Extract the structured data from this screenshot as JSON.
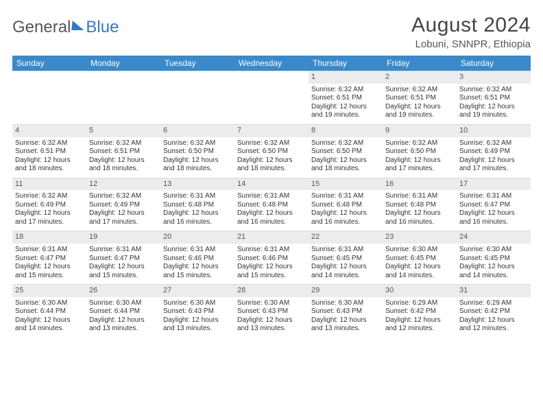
{
  "logo": {
    "text1": "General",
    "text2": "Blue"
  },
  "title": "August 2024",
  "location": "Lobuni, SNNPR, Ethiopia",
  "colors": {
    "header_bg": "#3b89c9",
    "header_text": "#ffffff",
    "daynum_bg": "#ececec",
    "border": "#d9d9d9",
    "text": "#333333",
    "logo_blue": "#2f7ac0"
  },
  "day_headers": [
    "Sunday",
    "Monday",
    "Tuesday",
    "Wednesday",
    "Thursday",
    "Friday",
    "Saturday"
  ],
  "weeks": [
    [
      {
        "day": "",
        "sunrise": "",
        "sunset": "",
        "daylight1": "",
        "daylight2": "",
        "empty": true
      },
      {
        "day": "",
        "sunrise": "",
        "sunset": "",
        "daylight1": "",
        "daylight2": "",
        "empty": true
      },
      {
        "day": "",
        "sunrise": "",
        "sunset": "",
        "daylight1": "",
        "daylight2": "",
        "empty": true
      },
      {
        "day": "",
        "sunrise": "",
        "sunset": "",
        "daylight1": "",
        "daylight2": "",
        "empty": true
      },
      {
        "day": "1",
        "sunrise": "Sunrise: 6:32 AM",
        "sunset": "Sunset: 6:51 PM",
        "daylight1": "Daylight: 12 hours",
        "daylight2": "and 19 minutes."
      },
      {
        "day": "2",
        "sunrise": "Sunrise: 6:32 AM",
        "sunset": "Sunset: 6:51 PM",
        "daylight1": "Daylight: 12 hours",
        "daylight2": "and 19 minutes."
      },
      {
        "day": "3",
        "sunrise": "Sunrise: 6:32 AM",
        "sunset": "Sunset: 6:51 PM",
        "daylight1": "Daylight: 12 hours",
        "daylight2": "and 19 minutes."
      }
    ],
    [
      {
        "day": "4",
        "sunrise": "Sunrise: 6:32 AM",
        "sunset": "Sunset: 6:51 PM",
        "daylight1": "Daylight: 12 hours",
        "daylight2": "and 18 minutes."
      },
      {
        "day": "5",
        "sunrise": "Sunrise: 6:32 AM",
        "sunset": "Sunset: 6:51 PM",
        "daylight1": "Daylight: 12 hours",
        "daylight2": "and 18 minutes."
      },
      {
        "day": "6",
        "sunrise": "Sunrise: 6:32 AM",
        "sunset": "Sunset: 6:50 PM",
        "daylight1": "Daylight: 12 hours",
        "daylight2": "and 18 minutes."
      },
      {
        "day": "7",
        "sunrise": "Sunrise: 6:32 AM",
        "sunset": "Sunset: 6:50 PM",
        "daylight1": "Daylight: 12 hours",
        "daylight2": "and 18 minutes."
      },
      {
        "day": "8",
        "sunrise": "Sunrise: 6:32 AM",
        "sunset": "Sunset: 6:50 PM",
        "daylight1": "Daylight: 12 hours",
        "daylight2": "and 18 minutes."
      },
      {
        "day": "9",
        "sunrise": "Sunrise: 6:32 AM",
        "sunset": "Sunset: 6:50 PM",
        "daylight1": "Daylight: 12 hours",
        "daylight2": "and 17 minutes."
      },
      {
        "day": "10",
        "sunrise": "Sunrise: 6:32 AM",
        "sunset": "Sunset: 6:49 PM",
        "daylight1": "Daylight: 12 hours",
        "daylight2": "and 17 minutes."
      }
    ],
    [
      {
        "day": "11",
        "sunrise": "Sunrise: 6:32 AM",
        "sunset": "Sunset: 6:49 PM",
        "daylight1": "Daylight: 12 hours",
        "daylight2": "and 17 minutes."
      },
      {
        "day": "12",
        "sunrise": "Sunrise: 6:32 AM",
        "sunset": "Sunset: 6:49 PM",
        "daylight1": "Daylight: 12 hours",
        "daylight2": "and 17 minutes."
      },
      {
        "day": "13",
        "sunrise": "Sunrise: 6:31 AM",
        "sunset": "Sunset: 6:48 PM",
        "daylight1": "Daylight: 12 hours",
        "daylight2": "and 16 minutes."
      },
      {
        "day": "14",
        "sunrise": "Sunrise: 6:31 AM",
        "sunset": "Sunset: 6:48 PM",
        "daylight1": "Daylight: 12 hours",
        "daylight2": "and 16 minutes."
      },
      {
        "day": "15",
        "sunrise": "Sunrise: 6:31 AM",
        "sunset": "Sunset: 6:48 PM",
        "daylight1": "Daylight: 12 hours",
        "daylight2": "and 16 minutes."
      },
      {
        "day": "16",
        "sunrise": "Sunrise: 6:31 AM",
        "sunset": "Sunset: 6:48 PM",
        "daylight1": "Daylight: 12 hours",
        "daylight2": "and 16 minutes."
      },
      {
        "day": "17",
        "sunrise": "Sunrise: 6:31 AM",
        "sunset": "Sunset: 6:47 PM",
        "daylight1": "Daylight: 12 hours",
        "daylight2": "and 16 minutes."
      }
    ],
    [
      {
        "day": "18",
        "sunrise": "Sunrise: 6:31 AM",
        "sunset": "Sunset: 6:47 PM",
        "daylight1": "Daylight: 12 hours",
        "daylight2": "and 15 minutes."
      },
      {
        "day": "19",
        "sunrise": "Sunrise: 6:31 AM",
        "sunset": "Sunset: 6:47 PM",
        "daylight1": "Daylight: 12 hours",
        "daylight2": "and 15 minutes."
      },
      {
        "day": "20",
        "sunrise": "Sunrise: 6:31 AM",
        "sunset": "Sunset: 6:46 PM",
        "daylight1": "Daylight: 12 hours",
        "daylight2": "and 15 minutes."
      },
      {
        "day": "21",
        "sunrise": "Sunrise: 6:31 AM",
        "sunset": "Sunset: 6:46 PM",
        "daylight1": "Daylight: 12 hours",
        "daylight2": "and 15 minutes."
      },
      {
        "day": "22",
        "sunrise": "Sunrise: 6:31 AM",
        "sunset": "Sunset: 6:45 PM",
        "daylight1": "Daylight: 12 hours",
        "daylight2": "and 14 minutes."
      },
      {
        "day": "23",
        "sunrise": "Sunrise: 6:30 AM",
        "sunset": "Sunset: 6:45 PM",
        "daylight1": "Daylight: 12 hours",
        "daylight2": "and 14 minutes."
      },
      {
        "day": "24",
        "sunrise": "Sunrise: 6:30 AM",
        "sunset": "Sunset: 6:45 PM",
        "daylight1": "Daylight: 12 hours",
        "daylight2": "and 14 minutes."
      }
    ],
    [
      {
        "day": "25",
        "sunrise": "Sunrise: 6:30 AM",
        "sunset": "Sunset: 6:44 PM",
        "daylight1": "Daylight: 12 hours",
        "daylight2": "and 14 minutes."
      },
      {
        "day": "26",
        "sunrise": "Sunrise: 6:30 AM",
        "sunset": "Sunset: 6:44 PM",
        "daylight1": "Daylight: 12 hours",
        "daylight2": "and 13 minutes."
      },
      {
        "day": "27",
        "sunrise": "Sunrise: 6:30 AM",
        "sunset": "Sunset: 6:43 PM",
        "daylight1": "Daylight: 12 hours",
        "daylight2": "and 13 minutes."
      },
      {
        "day": "28",
        "sunrise": "Sunrise: 6:30 AM",
        "sunset": "Sunset: 6:43 PM",
        "daylight1": "Daylight: 12 hours",
        "daylight2": "and 13 minutes."
      },
      {
        "day": "29",
        "sunrise": "Sunrise: 6:30 AM",
        "sunset": "Sunset: 6:43 PM",
        "daylight1": "Daylight: 12 hours",
        "daylight2": "and 13 minutes."
      },
      {
        "day": "30",
        "sunrise": "Sunrise: 6:29 AM",
        "sunset": "Sunset: 6:42 PM",
        "daylight1": "Daylight: 12 hours",
        "daylight2": "and 12 minutes."
      },
      {
        "day": "31",
        "sunrise": "Sunrise: 6:29 AM",
        "sunset": "Sunset: 6:42 PM",
        "daylight1": "Daylight: 12 hours",
        "daylight2": "and 12 minutes."
      }
    ]
  ]
}
